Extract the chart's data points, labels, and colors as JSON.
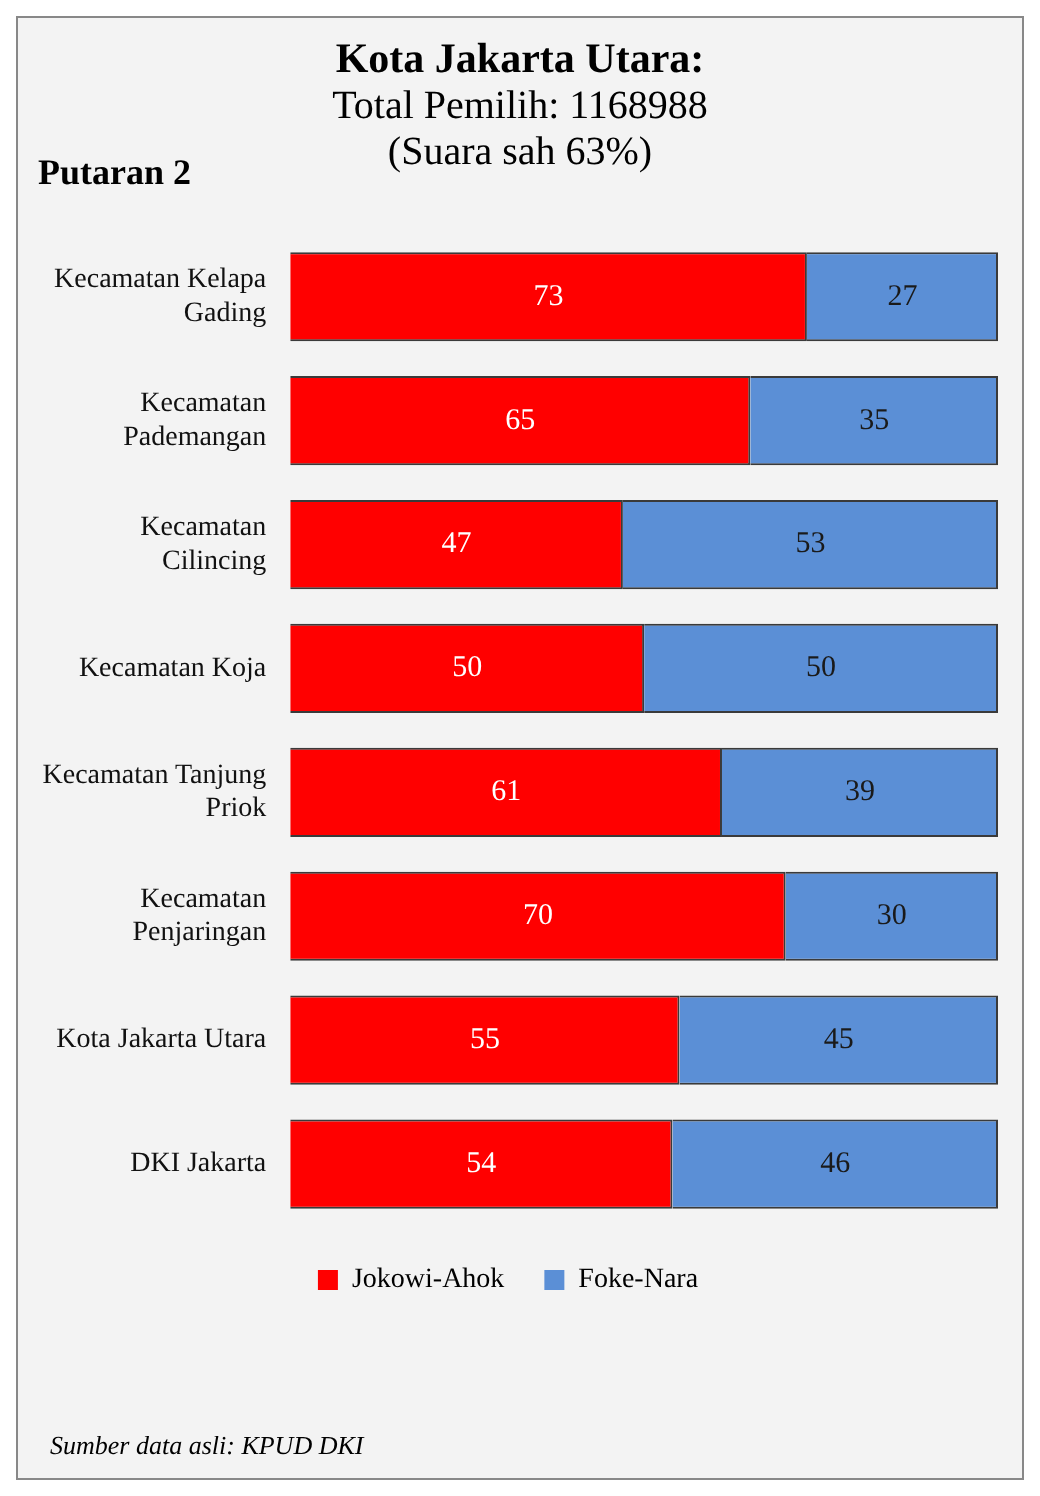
{
  "chart_data": {
    "type": "bar",
    "orientation": "horizontal",
    "stacked": true,
    "title": "Kota Jakarta Utara:",
    "subtitle": "Total Pemilih: 1168988\n(Suara sah 63%)",
    "categories": [
      "Kecamatan Kelapa Gading",
      "Kecamatan Pademangan",
      "Kecamatan Cilincing",
      "Kecamatan Koja",
      "Kecamatan Tanjung Priok",
      "Kecamatan Penjaringan",
      "Kota Jakarta Utara",
      "DKI Jakarta"
    ],
    "series": [
      {
        "name": "Jokowi-Ahok",
        "color": "#ff0000",
        "values": [
          73,
          65,
          47,
          50,
          61,
          70,
          55,
          54
        ]
      },
      {
        "name": "Foke-Nara",
        "color": "#5b8fd6",
        "values": [
          27,
          35,
          53,
          50,
          39,
          30,
          45,
          46
        ]
      }
    ],
    "data_labels": true,
    "legend": "bottom",
    "annotations": [
      "Putaran 2",
      "Sumber data asli: KPUD DKI"
    ]
  }
}
